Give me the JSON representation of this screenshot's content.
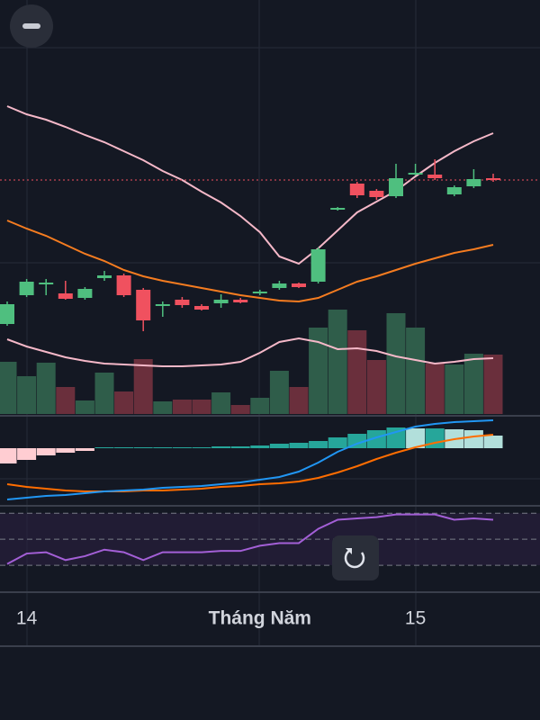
{
  "chart_data": [
    {
      "type": "candlestick",
      "categories": [
        null,
        "14",
        null,
        null,
        null,
        null,
        null,
        null,
        null,
        null,
        null,
        null,
        null,
        "Tháng Năm",
        null,
        null,
        null,
        null,
        null,
        null,
        null,
        "15",
        null,
        null,
        null,
        null
      ],
      "open": [
        140,
        172,
        184,
        174,
        169,
        191,
        194,
        178,
        160,
        167,
        160,
        163,
        167,
        174,
        180,
        185,
        187,
        267,
        296,
        288,
        282,
        306,
        306,
        284,
        293,
        302
      ],
      "close": [
        162,
        187,
        186,
        168,
        179,
        194,
        172,
        144,
        162,
        161,
        156,
        167,
        164,
        176,
        185,
        181,
        223,
        269,
        283,
        281,
        302,
        308,
        302,
        292,
        301,
        300
      ],
      "high": [
        165,
        190,
        190,
        188,
        181,
        199,
        196,
        180,
        165,
        170,
        162,
        173,
        169,
        178,
        188,
        186,
        225,
        270,
        298,
        290,
        318,
        318,
        323,
        294,
        312,
        307
      ],
      "low": [
        138,
        170,
        172,
        167,
        167,
        188,
        170,
        132,
        148,
        158,
        155,
        158,
        163,
        172,
        178,
        180,
        185,
        266,
        280,
        278,
        280,
        305,
        300,
        282,
        291,
        298
      ],
      "up_color": "#4fbf7f",
      "down_color": "#f0515f",
      "ylim": [
        40,
        500
      ],
      "bands": {
        "upper": [
          382,
          373,
          367,
          359,
          350,
          342,
          332,
          322,
          310,
          300,
          287,
          275,
          260,
          242,
          215,
          207,
          224,
          244,
          264,
          276,
          288,
          304,
          319,
          332,
          343,
          352
        ],
        "middle": [
          255,
          246,
          238,
          228,
          218,
          210,
          200,
          193,
          188,
          184,
          180,
          176,
          172,
          169,
          166,
          165,
          169,
          178,
          187,
          193,
          200,
          207,
          213,
          219,
          223,
          228
        ],
        "lower": [
          123,
          115,
          109,
          103,
          99,
          96,
          95,
          94,
          93,
          93,
          94,
          95,
          98,
          108,
          120,
          124,
          120,
          112,
          113,
          110,
          104,
          100,
          96,
          98,
          101,
          102
        ],
        "band_color": "#f5b8c8",
        "middle_color": "#f57c20"
      },
      "volume": {
        "values": [
          58,
          42,
          57,
          30,
          15,
          46,
          25,
          61,
          14,
          16,
          16,
          24,
          10,
          18,
          48,
          30,
          96,
          116,
          93,
          60,
          112,
          96,
          56,
          55,
          67,
          66
        ],
        "ylim": [
          0,
          460
        ],
        "up_color": "#2f5d4a",
        "down_color": "#6a2f3c"
      }
    },
    {
      "type": "macd",
      "ylim": [
        -62,
        35
      ],
      "histogram": [
        -17,
        -13,
        -8,
        -5,
        -3,
        1,
        1,
        1,
        1,
        1,
        1,
        2,
        2,
        3,
        5,
        6,
        8,
        12,
        16,
        20,
        23,
        22,
        22,
        21,
        20,
        14
      ],
      "macd": [
        -57,
        -55,
        -53,
        -52,
        -50,
        -48,
        -47,
        -46,
        -44,
        -43,
        -42,
        -40,
        -38,
        -35,
        -32,
        -26,
        -16,
        -4,
        5,
        12,
        18,
        24,
        27,
        29,
        30,
        31
      ],
      "signal": [
        -40,
        -43,
        -45,
        -47,
        -48,
        -48,
        -48,
        -47,
        -47,
        -46,
        -45,
        -43,
        -42,
        -40,
        -39,
        -37,
        -33,
        -27,
        -20,
        -12,
        -5,
        1,
        6,
        10,
        13,
        15
      ],
      "pos_rising_color": "#26a69a",
      "pos_falling_color": "#b2dfdb",
      "neg_color": "#ffcdd2",
      "macd_color": "#2196f3",
      "signal_color": "#ff6d00"
    },
    {
      "type": "rsi",
      "ylim": [
        10,
        75
      ],
      "values": [
        31,
        39,
        40,
        34,
        37,
        42,
        40,
        34,
        40,
        40,
        40,
        41,
        41,
        45,
        47,
        47,
        58,
        65,
        66,
        67,
        69,
        69,
        69,
        65,
        66,
        65
      ],
      "levels": [
        30,
        50,
        70
      ],
      "color": "#a35fd6",
      "band_color": "#2a2040"
    }
  ]
}
